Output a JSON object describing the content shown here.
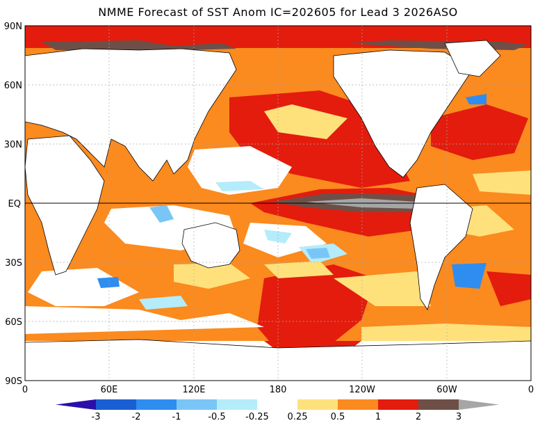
{
  "title": "NMME Forecast of SST Anom IC=202605 for Lead 3 2026ASO",
  "lat_labels": [
    "90N",
    "60N",
    "30N",
    "EQ",
    "30S",
    "60S",
    "90S"
  ],
  "lon_labels": [
    "0",
    "60E",
    "120E",
    "180",
    "120W",
    "60W",
    "0"
  ],
  "colorbar": {
    "ticks": [
      "-3",
      "-2",
      "-1",
      "-0.5",
      "-0.25",
      "0.25",
      "0.5",
      "1",
      "2",
      "3"
    ],
    "bins": [
      {
        "color": "#2b0fa8"
      },
      {
        "color": "#1a5fd1"
      },
      {
        "color": "#2f8df0"
      },
      {
        "color": "#79c6f6"
      },
      {
        "color": "#b4ecfb"
      },
      {
        "color": "#ffffff"
      },
      {
        "color": "#ffe17c"
      },
      {
        "color": "#fb8a1f"
      },
      {
        "color": "#e31c0d"
      },
      {
        "color": "#6e4f47"
      },
      {
        "color": "#a6a6a6"
      }
    ]
  },
  "colors": {
    "land": "#ffffff",
    "warm1": "#ffe17c",
    "warm2": "#fb8a1f",
    "warm3": "#e31c0d",
    "warm4": "#6e4f47",
    "warm5": "#a6a6a6",
    "cool1": "#b4ecfb",
    "cool2": "#79c6f6",
    "cool3": "#2f8df0"
  }
}
